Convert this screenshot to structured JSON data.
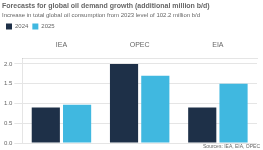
{
  "chart_data": {
    "type": "bar",
    "title": "Forecasts for global oil demand growth (additional million b/d)",
    "subtitle": "Increase in total global oil consumption from 2023 level of 102.2 million b/d",
    "categories": [
      "IEA",
      "OPEC",
      "EIA"
    ],
    "series": [
      {
        "name": "2024",
        "color": "#1e3048",
        "values": [
          0.9,
          2.0,
          0.9
        ]
      },
      {
        "name": "2025",
        "color": "#40b8e0",
        "values": [
          0.97,
          1.7,
          1.5
        ]
      }
    ],
    "ylim": [
      0,
      2.15
    ],
    "yticks": [
      {
        "value": 0,
        "label": "0.0"
      },
      0.5,
      {
        "value": 1,
        "label": "1.0"
      },
      1.5,
      {
        "value": 2,
        "label": "2.0"
      }
    ],
    "grid": true,
    "legend": "top left",
    "annotations": [
      "Sources: IEA, EIA, OPEC"
    ]
  }
}
